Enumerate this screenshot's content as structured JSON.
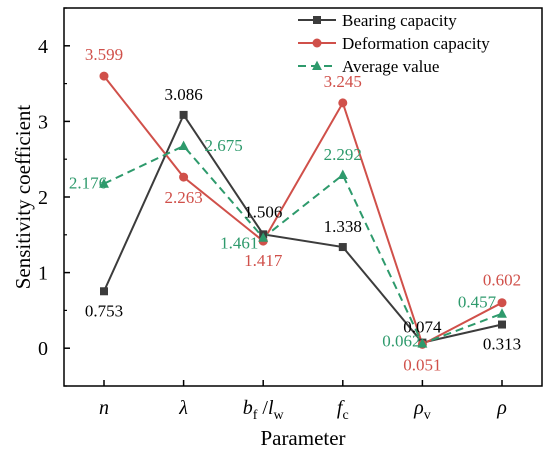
{
  "chart_data": {
    "type": "line",
    "title": "",
    "xlabel": "Parameter",
    "ylabel": "Sensitivity coefficient",
    "ylim": [
      -0.5,
      4.5
    ],
    "yticks": [
      0,
      1,
      2,
      3,
      4
    ],
    "categories": [
      {
        "main": "n",
        "sub": ""
      },
      {
        "main": "λ",
        "sub": ""
      },
      {
        "main": "b",
        "sub": "f",
        "sep": " /",
        "main2": "l",
        "sub2": "w"
      },
      {
        "main": "f",
        "sub": "c"
      },
      {
        "main": "ρ",
        "sub": "v"
      },
      {
        "main": "ρ",
        "sub": ""
      }
    ],
    "grid": false,
    "legend_position": "top-right",
    "series": [
      {
        "name": "Bearing capacity",
        "color": "#3c3c3c",
        "label_color": "#000000",
        "marker": "square",
        "dash": "solid",
        "values": [
          0.753,
          3.086,
          1.506,
          1.338,
          0.074,
          0.313
        ],
        "labels": [
          "0.753",
          "3.086",
          "1.506",
          "1.338",
          "0.074",
          "0.313"
        ]
      },
      {
        "name": "Deformation capacity",
        "color": "#d0504a",
        "label_color": "#d0504a",
        "marker": "circle",
        "dash": "solid",
        "values": [
          3.599,
          2.263,
          1.417,
          3.245,
          0.051,
          0.602
        ],
        "labels": [
          "3.599",
          "2.263",
          "1.417",
          "3.245",
          "0.051",
          "0.602"
        ]
      },
      {
        "name": "Average value",
        "color": "#2e9a6c",
        "label_color": "#2e9a6c",
        "marker": "triangle",
        "dash": "dashed",
        "values": [
          2.176,
          2.675,
          1.461,
          2.292,
          0.062,
          0.457
        ],
        "labels": [
          "2.176",
          "2.675",
          "1.461",
          "2.292",
          "0.062",
          "0.457"
        ]
      }
    ]
  }
}
